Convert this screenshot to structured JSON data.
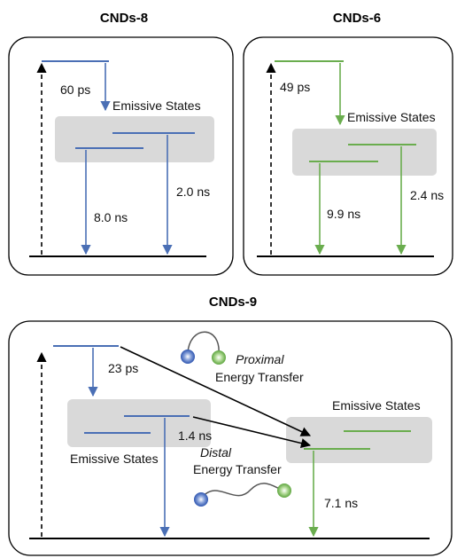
{
  "colors": {
    "blue": "#4a6fb5",
    "green": "#6aad4e",
    "shade": "#d9d9d9",
    "ink": "#000000"
  },
  "panels": {
    "cnds8": {
      "title": "CNDs-8",
      "relax_time": "60 ps",
      "emissive_label": "Emissive States",
      "decay_a": "8.0 ns",
      "decay_b": "2.0 ns"
    },
    "cnds6": {
      "title": "CNDs-6",
      "relax_time": "49 ps",
      "emissive_label": "Emissive States",
      "decay_a": "9.9 ns",
      "decay_b": "2.4 ns"
    },
    "cnds9": {
      "title": "CNDs-9",
      "relax_time": "23 ps",
      "blue_emissive_label": "Emissive States",
      "green_emissive_label": "Emissive States",
      "blue_decay": "1.4 ns",
      "green_decay": "7.1 ns",
      "proximal_word": "Proximal",
      "proximal_rest": "Energy Transfer",
      "distal_word": "Distal",
      "distal_rest": "Energy Transfer"
    }
  }
}
